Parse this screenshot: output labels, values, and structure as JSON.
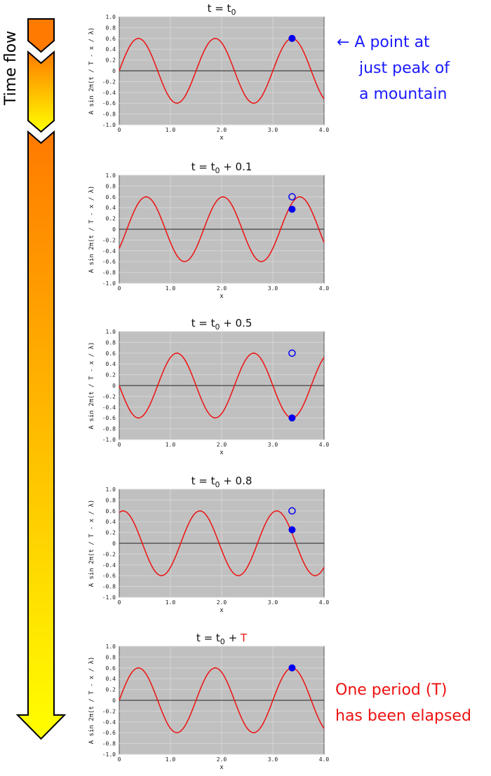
{
  "time_flow_label": "Time flow",
  "annotations": {
    "peak_note": [
      "← A point at",
      "just peak of",
      "a mountain"
    ],
    "period_note": [
      "One period (T)",
      "has been elapsed"
    ]
  },
  "colors": {
    "curve": "#ee1111",
    "point": "#0000ee",
    "plot_bg": "#c0c0c0",
    "arrow_top": "#ff7a00",
    "arrow_bottom": "#ffff00"
  },
  "chart_data": [
    {
      "type": "line",
      "title": {
        "main": "t = t",
        "sub": "0",
        "suffix": "",
        "suffix_red": ""
      },
      "xlabel": "x",
      "ylabel": "A sin 2π(t / T - x / λ)",
      "xlim": [
        0,
        4
      ],
      "ylim": [
        -1,
        1
      ],
      "xticks": [
        "0",
        "1.0",
        "2.0",
        "3.0",
        "4.0"
      ],
      "yticks": [
        "1.0",
        "0.8",
        "0.6",
        "0.4",
        "0.2",
        "0",
        "-0.2",
        "-0.4",
        "-0.6",
        "-0.8",
        "-1.0"
      ],
      "grid": true,
      "series": [
        {
          "amplitude": 0.6,
          "wavelength": 1.5,
          "period_fraction": 0
        }
      ],
      "filled_point": {
        "x": 3.375,
        "y": 0.6
      },
      "open_point": null
    },
    {
      "type": "line",
      "title": {
        "main": "t = t",
        "sub": "0",
        "suffix": " + 0.1",
        "suffix_red": ""
      },
      "xlabel": "x",
      "ylabel": "A sin 2π(t / T - x / λ)",
      "xlim": [
        0,
        4
      ],
      "ylim": [
        -1,
        1
      ],
      "xticks": [
        "0",
        "1.0",
        "2.0",
        "3.0",
        "4.0"
      ],
      "yticks": [
        "1.0",
        "0.8",
        "0.6",
        "0.4",
        "0.2",
        "0",
        "-0.2",
        "-0.4",
        "-0.6",
        "-0.8",
        "-1.0"
      ],
      "grid": true,
      "series": [
        {
          "amplitude": 0.6,
          "wavelength": 1.5,
          "period_fraction": 0.1
        }
      ],
      "filled_point": {
        "x": 3.375,
        "y": 0.37
      },
      "open_point": {
        "x": 3.375,
        "y": 0.6
      }
    },
    {
      "type": "line",
      "title": {
        "main": "t = t",
        "sub": "0",
        "suffix": " + 0.5",
        "suffix_red": ""
      },
      "xlabel": "x",
      "ylabel": "A sin 2π(t / T - x / λ)",
      "xlim": [
        0,
        4
      ],
      "ylim": [
        -1,
        1
      ],
      "xticks": [
        "0",
        "1.0",
        "2.0",
        "3.0",
        "4.0"
      ],
      "yticks": [
        "1.0",
        "0.8",
        "0.6",
        "0.4",
        "0.2",
        "0",
        "-0.2",
        "-0.4",
        "-0.6",
        "-0.8",
        "-1.0"
      ],
      "grid": true,
      "series": [
        {
          "amplitude": 0.6,
          "wavelength": 1.5,
          "period_fraction": 0.5
        }
      ],
      "filled_point": {
        "x": 3.375,
        "y": -0.6
      },
      "open_point": {
        "x": 3.375,
        "y": 0.6
      }
    },
    {
      "type": "line",
      "title": {
        "main": "t = t",
        "sub": "0",
        "suffix": " + 0.8",
        "suffix_red": ""
      },
      "xlabel": "x",
      "ylabel": "A sin 2π(t / T - x / λ)",
      "xlim": [
        0,
        4
      ],
      "ylim": [
        -1,
        1
      ],
      "xticks": [
        "0",
        "1.0",
        "2.0",
        "3.0",
        "4.0"
      ],
      "yticks": [
        "1.0",
        "0.8",
        "0.6",
        "0.4",
        "0.2",
        "0",
        "-0.2",
        "-0.4",
        "-0.6",
        "-0.8",
        "-1.0"
      ],
      "grid": true,
      "series": [
        {
          "amplitude": 0.6,
          "wavelength": 1.5,
          "period_fraction": 0.8
        }
      ],
      "filled_point": {
        "x": 3.375,
        "y": 0.25
      },
      "open_point": {
        "x": 3.375,
        "y": 0.6
      }
    },
    {
      "type": "line",
      "title": {
        "main": "t = t",
        "sub": "0",
        "suffix": " + ",
        "suffix_red": "T"
      },
      "xlabel": "x",
      "ylabel": "A sin 2π(t / T - x / λ)",
      "xlim": [
        0,
        4
      ],
      "ylim": [
        -1,
        1
      ],
      "xticks": [
        "0",
        "1.0",
        "2.0",
        "3.0",
        "4.0"
      ],
      "yticks": [
        "1.0",
        "0.8",
        "0.6",
        "0.4",
        "0.2",
        "0",
        "-0.2",
        "-0.4",
        "-0.6",
        "-0.8",
        "-1.0"
      ],
      "grid": true,
      "series": [
        {
          "amplitude": 0.6,
          "wavelength": 1.5,
          "period_fraction": 1.0
        }
      ],
      "filled_point": {
        "x": 3.375,
        "y": 0.6
      },
      "open_point": null
    }
  ]
}
